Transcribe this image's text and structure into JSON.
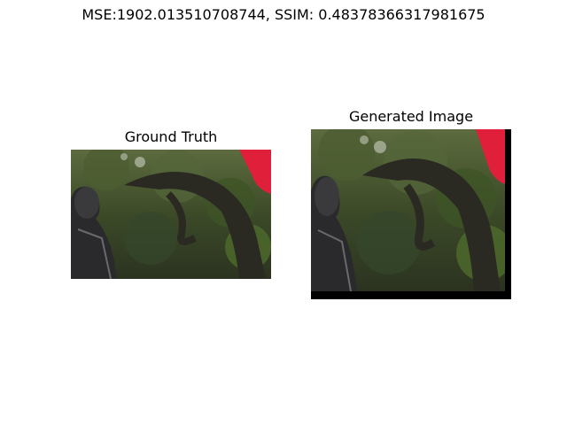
{
  "figure": {
    "metrics_title": "MSE:1902.013510708744, SSIM: 0.48378366317981675"
  },
  "panels": [
    {
      "title": "Ground Truth"
    },
    {
      "title": "Generated Image"
    }
  ]
}
